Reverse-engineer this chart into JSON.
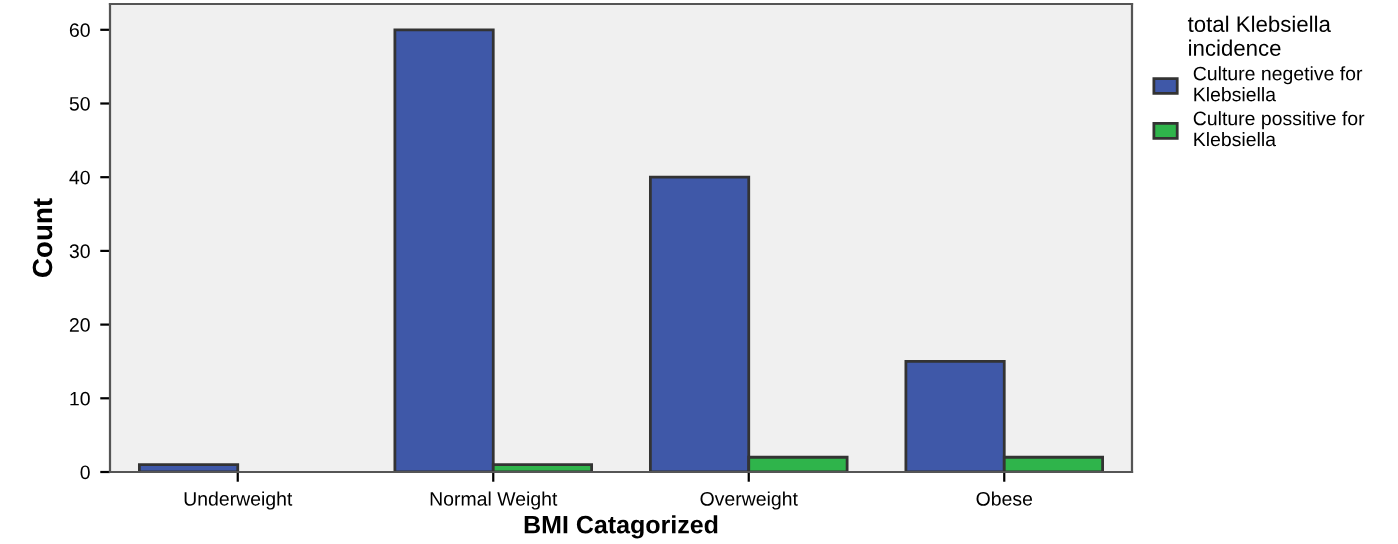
{
  "chart_data": {
    "type": "bar",
    "xlabel": "BMI Catagorized",
    "ylabel": "Count",
    "legend_title": "total Klebsiella\nincidence",
    "categories": [
      "Underweight",
      "Normal Weight",
      "Overweight",
      "Obese"
    ],
    "series": [
      {
        "name": "Culture negetive for\nKlebsiella",
        "color": "#3f58a8",
        "values": [
          1,
          60,
          40,
          15
        ]
      },
      {
        "name": "Culture possitive for\nKlebsiella",
        "color": "#2fb44b",
        "values": [
          null,
          1,
          2,
          2
        ]
      }
    ],
    "ylim": [
      0,
      63.5
    ],
    "yticks": [
      0,
      10,
      20,
      30,
      40,
      50,
      60
    ],
    "grid": false,
    "legend": "right"
  }
}
